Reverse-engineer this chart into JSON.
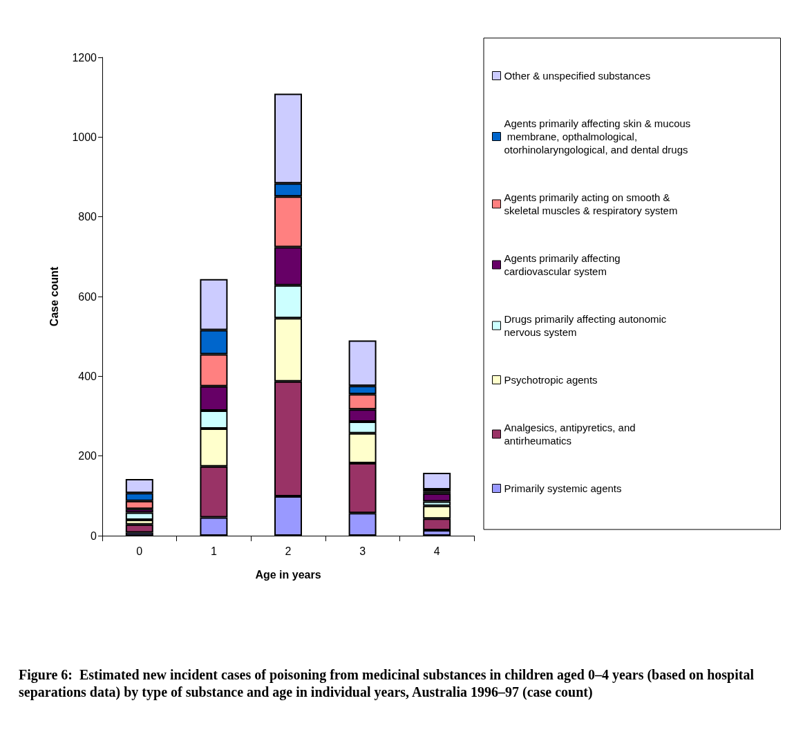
{
  "chart_data": {
    "type": "bar",
    "stacked": true,
    "title": "Figure 6:  Estimated new incident cases of poisoning from medicinal substances in children aged 0–4 years (based on hospital separations data) by type of substance and age in individual years, Australia 1996–97 (case count)",
    "xlabel": "Age in years",
    "ylabel": "Case count",
    "categories": [
      "0",
      "1",
      "2",
      "3",
      "4"
    ],
    "ylim": [
      0,
      1200
    ],
    "yticks": [
      0,
      200,
      400,
      600,
      800,
      1000,
      1200
    ],
    "grid": false,
    "legend": "right",
    "series": [
      {
        "name": "Primarily systemic agents",
        "color": "#9999ff",
        "values": [
          8,
          46,
          99,
          57,
          14
        ]
      },
      {
        "name": "Analgesics, antipyretics, and antirheumatics",
        "color": "#993366",
        "values": [
          20,
          128,
          288,
          125,
          29
        ]
      },
      {
        "name": "Psychotropic agents",
        "color": "#ffffcc",
        "values": [
          12,
          95,
          159,
          75,
          32
        ]
      },
      {
        "name": "Drugs primarily affecting autonomic nervous system",
        "color": "#ccffff",
        "values": [
          18,
          45,
          82,
          29,
          11
        ]
      },
      {
        "name": "Agents primarily affecting cardiovascular system",
        "color": "#660066",
        "values": [
          9,
          61,
          96,
          31,
          20
        ]
      },
      {
        "name": "Agents primarily acting on smooth & skeletal muscles & respiratory system",
        "color": "#ff8080",
        "values": [
          20,
          80,
          127,
          38,
          4
        ]
      },
      {
        "name": "Agents primarily affecting skin & mucous membrane, opthalmological, otorhinolaryngological, and dental drugs",
        "color": "#0066cc",
        "values": [
          20,
          61,
          33,
          21,
          6
        ]
      },
      {
        "name": "Other & unspecified substances",
        "color": "#ccccff",
        "values": [
          35,
          128,
          225,
          114,
          42
        ]
      }
    ]
  }
}
